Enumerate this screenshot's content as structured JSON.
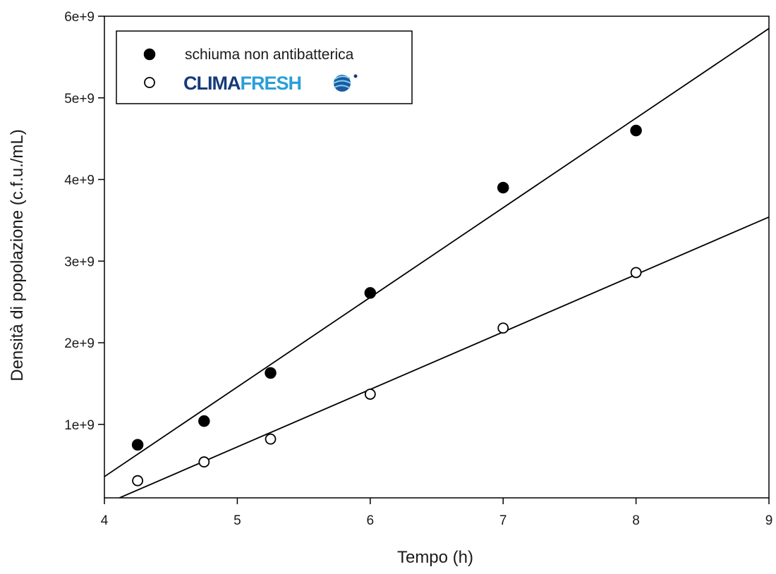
{
  "chart_data": {
    "type": "scatter",
    "xlabel": "Tempo (h)",
    "ylabel": "Densità di popolazione (c.f.u./mL)",
    "xlim": [
      4,
      9
    ],
    "ylim": [
      100000000,
      6000000000
    ],
    "xticks": [
      4,
      5,
      6,
      7,
      8,
      9
    ],
    "xtick_labels": [
      "4",
      "5",
      "6",
      "7",
      "8",
      "9"
    ],
    "yticks": [
      1000000000,
      2000000000,
      3000000000,
      4000000000,
      5000000000,
      6000000000
    ],
    "ytick_labels": [
      "1e+9",
      "2e+9",
      "3e+9",
      "4e+9",
      "5e+9",
      "6e+9"
    ],
    "grid": false,
    "legend_position": "top-left",
    "series": [
      {
        "name": "schiuma non antibatterica",
        "marker": "filled-circle",
        "x": [
          4.25,
          4.75,
          5.25,
          6.0,
          7.0,
          8.0
        ],
        "y": [
          750000000,
          1040000000,
          1630000000,
          2610000000,
          3900000000,
          4600000000
        ],
        "fit": {
          "x": [
            4,
            9
          ],
          "y": [
            360000000,
            5850000000
          ]
        }
      },
      {
        "name": "CLIMAFRESH",
        "marker": "open-circle",
        "x": [
          4.25,
          4.75,
          5.25,
          6.0,
          7.0,
          8.0
        ],
        "y": [
          310000000,
          540000000,
          820000000,
          1370000000,
          2180000000,
          2860000000
        ],
        "fit": {
          "x": [
            4,
            9
          ],
          "y": [
            20000000,
            3540000000
          ]
        }
      }
    ]
  },
  "legend": {
    "items": [
      {
        "label": "schiuma non antibatterica",
        "marker": "filled-circle"
      },
      {
        "label": "CLIMAFRESH",
        "marker": "open-circle",
        "logo_word_1": "CLIMA",
        "logo_word_2": "FRESH",
        "logo_icon": "globe-icon"
      }
    ]
  },
  "colors": {
    "axis": "#000000",
    "logo_dark": "#163a7a",
    "logo_light": "#2a9fd8"
  }
}
